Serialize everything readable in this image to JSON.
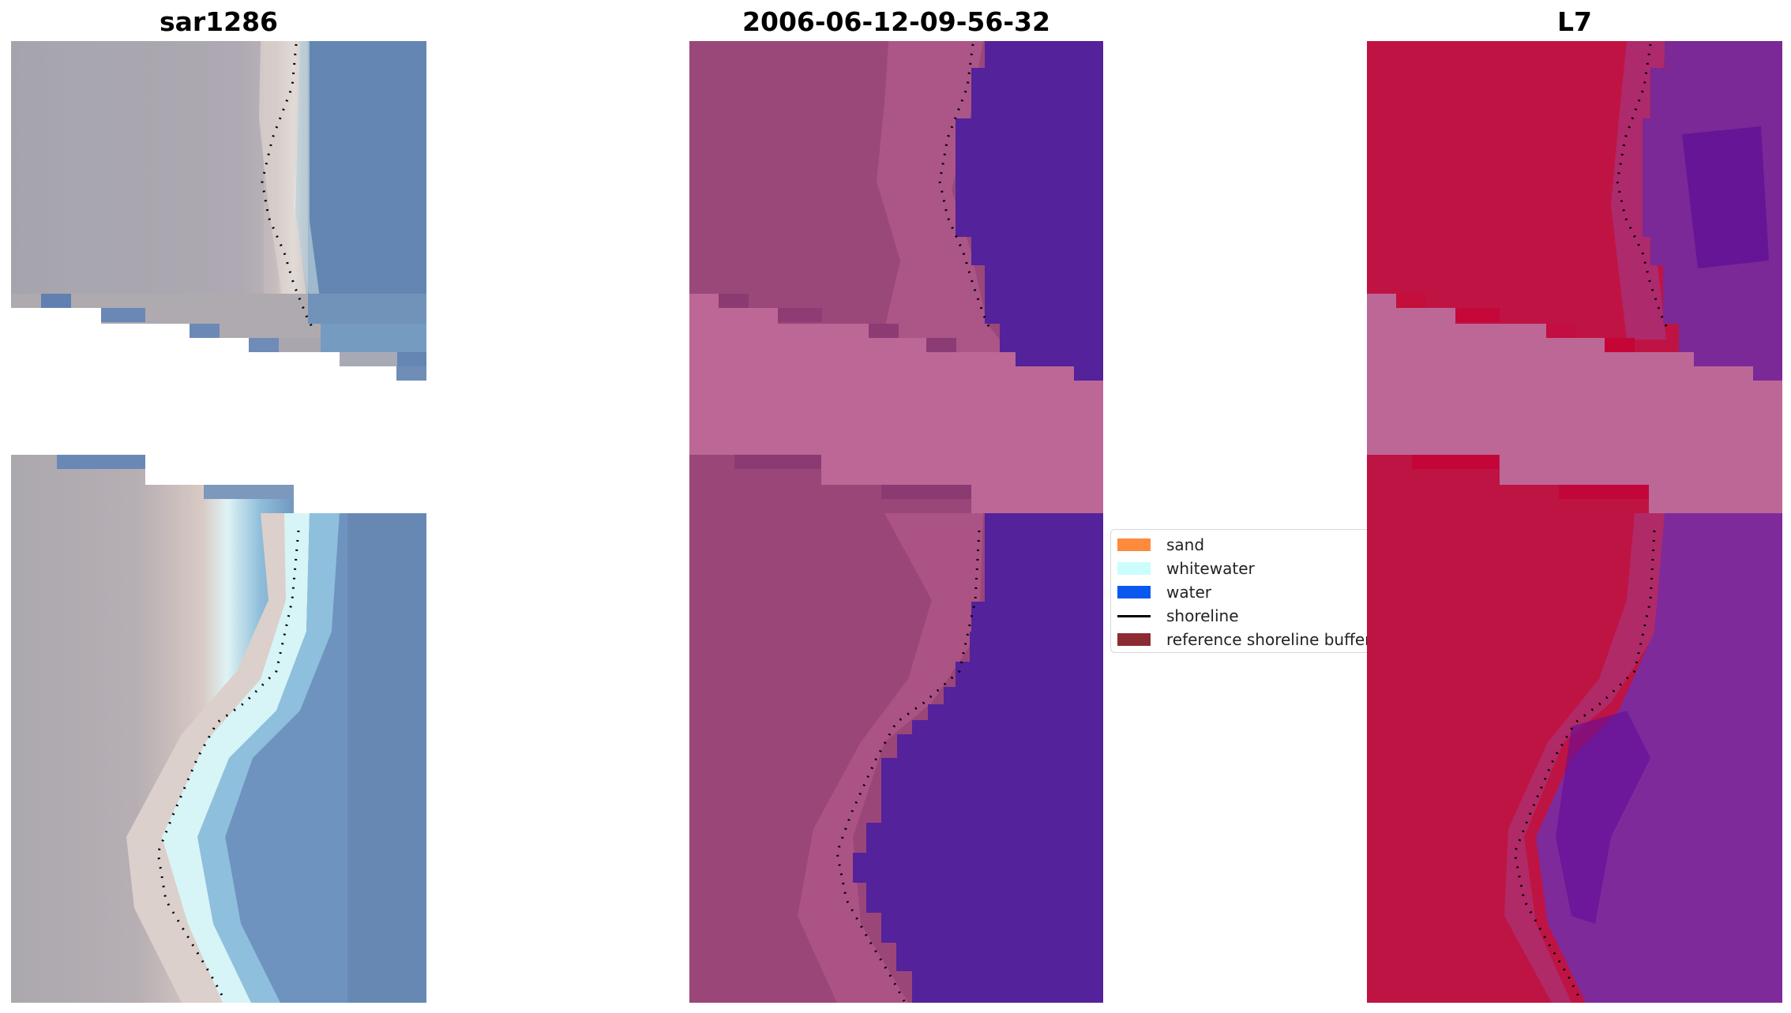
{
  "panels": [
    {
      "title": "sar1286"
    },
    {
      "title": "2006-06-12-09-56-32"
    },
    {
      "title": "L7"
    }
  ],
  "legend": {
    "items": [
      {
        "label": "sand",
        "kind": "patch",
        "color": "#fe8a3d"
      },
      {
        "label": "whitewater",
        "kind": "patch",
        "color": "#cbfdfd"
      },
      {
        "label": "water",
        "kind": "patch",
        "color": "#0a58f0"
      },
      {
        "label": "shoreline",
        "kind": "line",
        "color": "#000000"
      },
      {
        "label": "reference shoreline buffer",
        "kind": "patch",
        "color": "#8c2b31"
      }
    ]
  },
  "colors": {
    "rgb_land": "#b3abb3",
    "rgb_sand": "#e7e2de",
    "rgb_whitewater": "#d4f1f2",
    "rgb_water": "#6787b0",
    "rgb_nodata_pixel": "#6a88b6",
    "ndwi_land": "#9a4879",
    "ndwi_water": "#54229a",
    "mask_band": "#bd6797",
    "class_land": "#bf1443",
    "class_water": "#7b2a9b",
    "shoreline": "#000000"
  }
}
